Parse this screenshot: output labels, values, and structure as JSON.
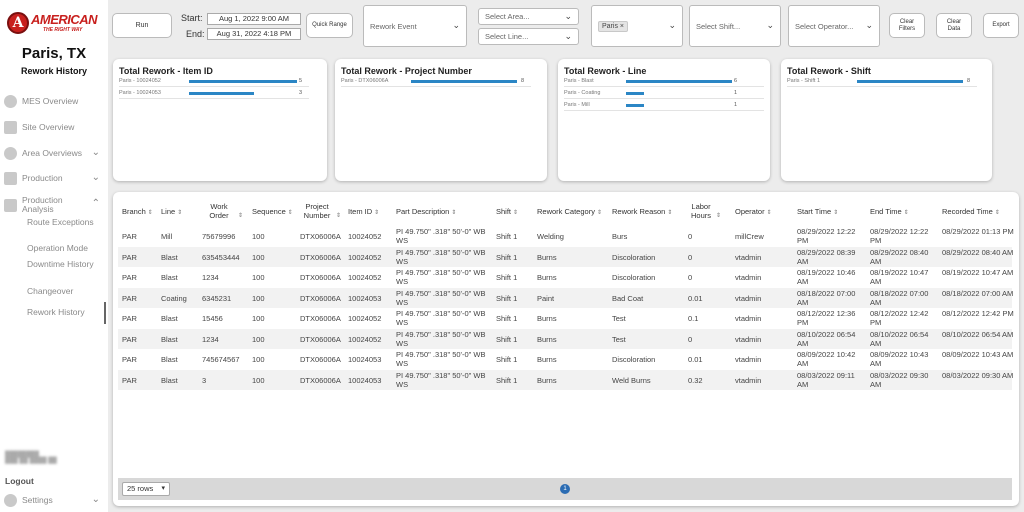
{
  "brand": {
    "word": "AMERICAN",
    "letter": "A",
    "tagline": "THE RIGHT WAY",
    "color": "#c8201e"
  },
  "site": {
    "title": "Paris, TX",
    "subtitle": "Rework History"
  },
  "nav": {
    "mes_overview": "MES Overview",
    "site_overview": "Site Overview",
    "area_overviews": "Area Overviews",
    "production": "Production",
    "production_analysis": "Production Analysis",
    "sub": [
      "Route Exceptions",
      "Operation Mode",
      "Downtime History",
      "Changeover",
      "Rework History"
    ],
    "logout": "Logout",
    "settings": "Settings"
  },
  "toolbar": {
    "run": "Run",
    "start_label": "Start:",
    "start_value": "Aug 1, 2022 9:00 AM",
    "end_label": "End:",
    "end_value": "Aug 31, 2022 4:18 PM",
    "quick_range": "Quick Range",
    "rework_event": "Rework Event",
    "select_area": "Select Area...",
    "select_line": "Select Line...",
    "site_chip": "Paris",
    "site_chip_x": "×",
    "select_shift": "Select Shift...",
    "select_operator": "Select Operator...",
    "clear_filters": "Clear Filters",
    "clear_data": "Clear Data",
    "export": "Export"
  },
  "cards": {
    "item": {
      "title": "Total Rework - Item ID",
      "rows": [
        {
          "label": "Paris - 10024052",
          "value": 5
        },
        {
          "label": "Paris - 10024053",
          "value": 3
        }
      ]
    },
    "project": {
      "title": "Total Rework - Project Number",
      "rows": [
        {
          "label": "Paris - DTX06006A",
          "value": 8
        }
      ]
    },
    "line": {
      "title": "Total Rework - Line",
      "rows": [
        {
          "label": "Paris - Blast",
          "value": 6
        },
        {
          "label": "Paris - Coating",
          "value": 1
        },
        {
          "label": "Paris - Mill",
          "value": 1
        }
      ]
    },
    "shift": {
      "title": "Total Rework - Shift",
      "rows": [
        {
          "label": "Paris - Shift 1",
          "value": 8
        }
      ]
    },
    "bar_color": "#2b86c5"
  },
  "table": {
    "headers": [
      "Branch",
      "Line",
      "Work Order",
      "Sequence",
      "Project Number",
      "Item ID",
      "Part Description",
      "Shift",
      "Rework Category",
      "Rework Reason",
      "Labor Hours",
      "Operator",
      "Start Time",
      "End Time",
      "Recorded Time"
    ],
    "rows": [
      [
        "PAR",
        "Mill",
        "75679996",
        "100",
        "DTX06006A",
        "10024052",
        "PI 49.750\" .318\" 50'-0\" WB WS",
        "Shift 1",
        "Welding",
        "Burs",
        "0",
        "millCrew",
        "08/29/2022 12:22 PM",
        "08/29/2022 12:22 PM",
        "08/29/2022 01:13 PM"
      ],
      [
        "PAR",
        "Blast",
        "635453444",
        "100",
        "DTX06006A",
        "10024052",
        "PI 49.750\" .318\" 50'-0\" WB WS",
        "Shift 1",
        "Burns",
        "Discoloration",
        "0",
        "vtadmin",
        "08/29/2022 08:39 AM",
        "08/29/2022 08:40 AM",
        "08/29/2022 08:40 AM"
      ],
      [
        "PAR",
        "Blast",
        "1234",
        "100",
        "DTX06006A",
        "10024052",
        "PI 49.750\" .318\" 50'-0\" WB WS",
        "Shift 1",
        "Burns",
        "Discoloration",
        "0",
        "vtadmin",
        "08/19/2022 10:46 AM",
        "08/19/2022 10:47 AM",
        "08/19/2022 10:47 AM"
      ],
      [
        "PAR",
        "Coating",
        "6345231",
        "100",
        "DTX06006A",
        "10024053",
        "PI 49.750\" .318\" 50'-0\" WB WS",
        "Shift 1",
        "Paint",
        "Bad Coat",
        "0.01",
        "vtadmin",
        "08/18/2022 07:00 AM",
        "08/18/2022 07:00 AM",
        "08/18/2022 07:00 AM"
      ],
      [
        "PAR",
        "Blast",
        "15456",
        "100",
        "DTX06006A",
        "10024052",
        "PI 49.750\" .318\" 50'-0\" WB WS",
        "Shift 1",
        "Burns",
        "Test",
        "0.1",
        "vtadmin",
        "08/12/2022 12:36 PM",
        "08/12/2022 12:42 PM",
        "08/12/2022 12:42 PM"
      ],
      [
        "PAR",
        "Blast",
        "1234",
        "100",
        "DTX06006A",
        "10024052",
        "PI 49.750\" .318\" 50'-0\" WB WS",
        "Shift 1",
        "Burns",
        "Test",
        "0",
        "vtadmin",
        "08/10/2022 06:54 AM",
        "08/10/2022 06:54 AM",
        "08/10/2022 06:54 AM"
      ],
      [
        "PAR",
        "Blast",
        "745674567",
        "100",
        "DTX06006A",
        "10024053",
        "PI 49.750\" .318\" 50'-0\" WB WS",
        "Shift 1",
        "Burns",
        "Discoloration",
        "0.01",
        "vtadmin",
        "08/09/2022 10:42 AM",
        "08/09/2022 10:43 AM",
        "08/09/2022 10:43 AM"
      ],
      [
        "PAR",
        "Blast",
        "3",
        "100",
        "DTX06006A",
        "10024053",
        "PI 49.750\" .318\" 50'-0\" WB WS",
        "Shift 1",
        "Burns",
        "Weld Burns",
        "0.32",
        "vtadmin",
        "08/03/2022 09:11 AM",
        "08/03/2022 09:30 AM",
        "08/03/2022 09:30 AM"
      ]
    ],
    "rows_per_page": "25 rows",
    "page": "1"
  }
}
